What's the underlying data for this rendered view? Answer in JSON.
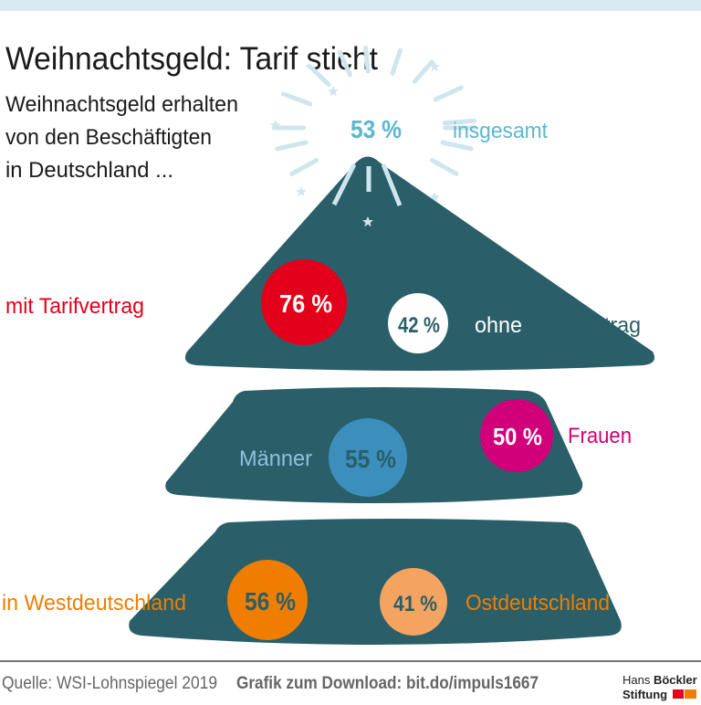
{
  "title": "Weihnachtsgeld: Tarif sticht",
  "subtitle": [
    "Weihnachtsgeld erhalten",
    "von den Beschäftigten",
    "in Deutschland  ..."
  ],
  "colors": {
    "tree": "#2a5f69",
    "total": "#5bb8cf",
    "mit_tarif": "#e2001a",
    "ohne_tarif": "#ffffff",
    "frauen": "#d1007a",
    "maenner": "#3c8fbd",
    "west": "#ef7d00",
    "ost": "#f4a460",
    "header_band": "#d9eaf2"
  },
  "chart_data": {
    "type": "infographic",
    "unit": "%",
    "items": [
      {
        "key": "total",
        "label": "insgesamt",
        "value": 53,
        "display": "53 %"
      },
      {
        "key": "mit_tarif",
        "label": "mit Tarifvertrag",
        "value": 76,
        "display": "76 %"
      },
      {
        "key": "ohne_tarif",
        "label_a": "ohne",
        "label_b": "Tarifvertrag",
        "value": 42,
        "display": "42 %"
      },
      {
        "key": "maenner",
        "label": "Männer",
        "value": 55,
        "display": "55 %"
      },
      {
        "key": "frauen",
        "label": "Frauen",
        "value": 50,
        "display": "50 %"
      },
      {
        "key": "west",
        "label": "in Westdeutschland",
        "value": 56,
        "display": "56 %"
      },
      {
        "key": "ost",
        "label": "Ostdeutschland",
        "value": 41,
        "display": "41 %"
      }
    ]
  },
  "footer": {
    "source": "Quelle: WSI-Lohnspiegel 2019",
    "download": "Grafik zum Download: bit.do/impuls1667",
    "logo_line1a": "Hans ",
    "logo_line1b": "Böckler",
    "logo_line2": "Stiftung"
  }
}
